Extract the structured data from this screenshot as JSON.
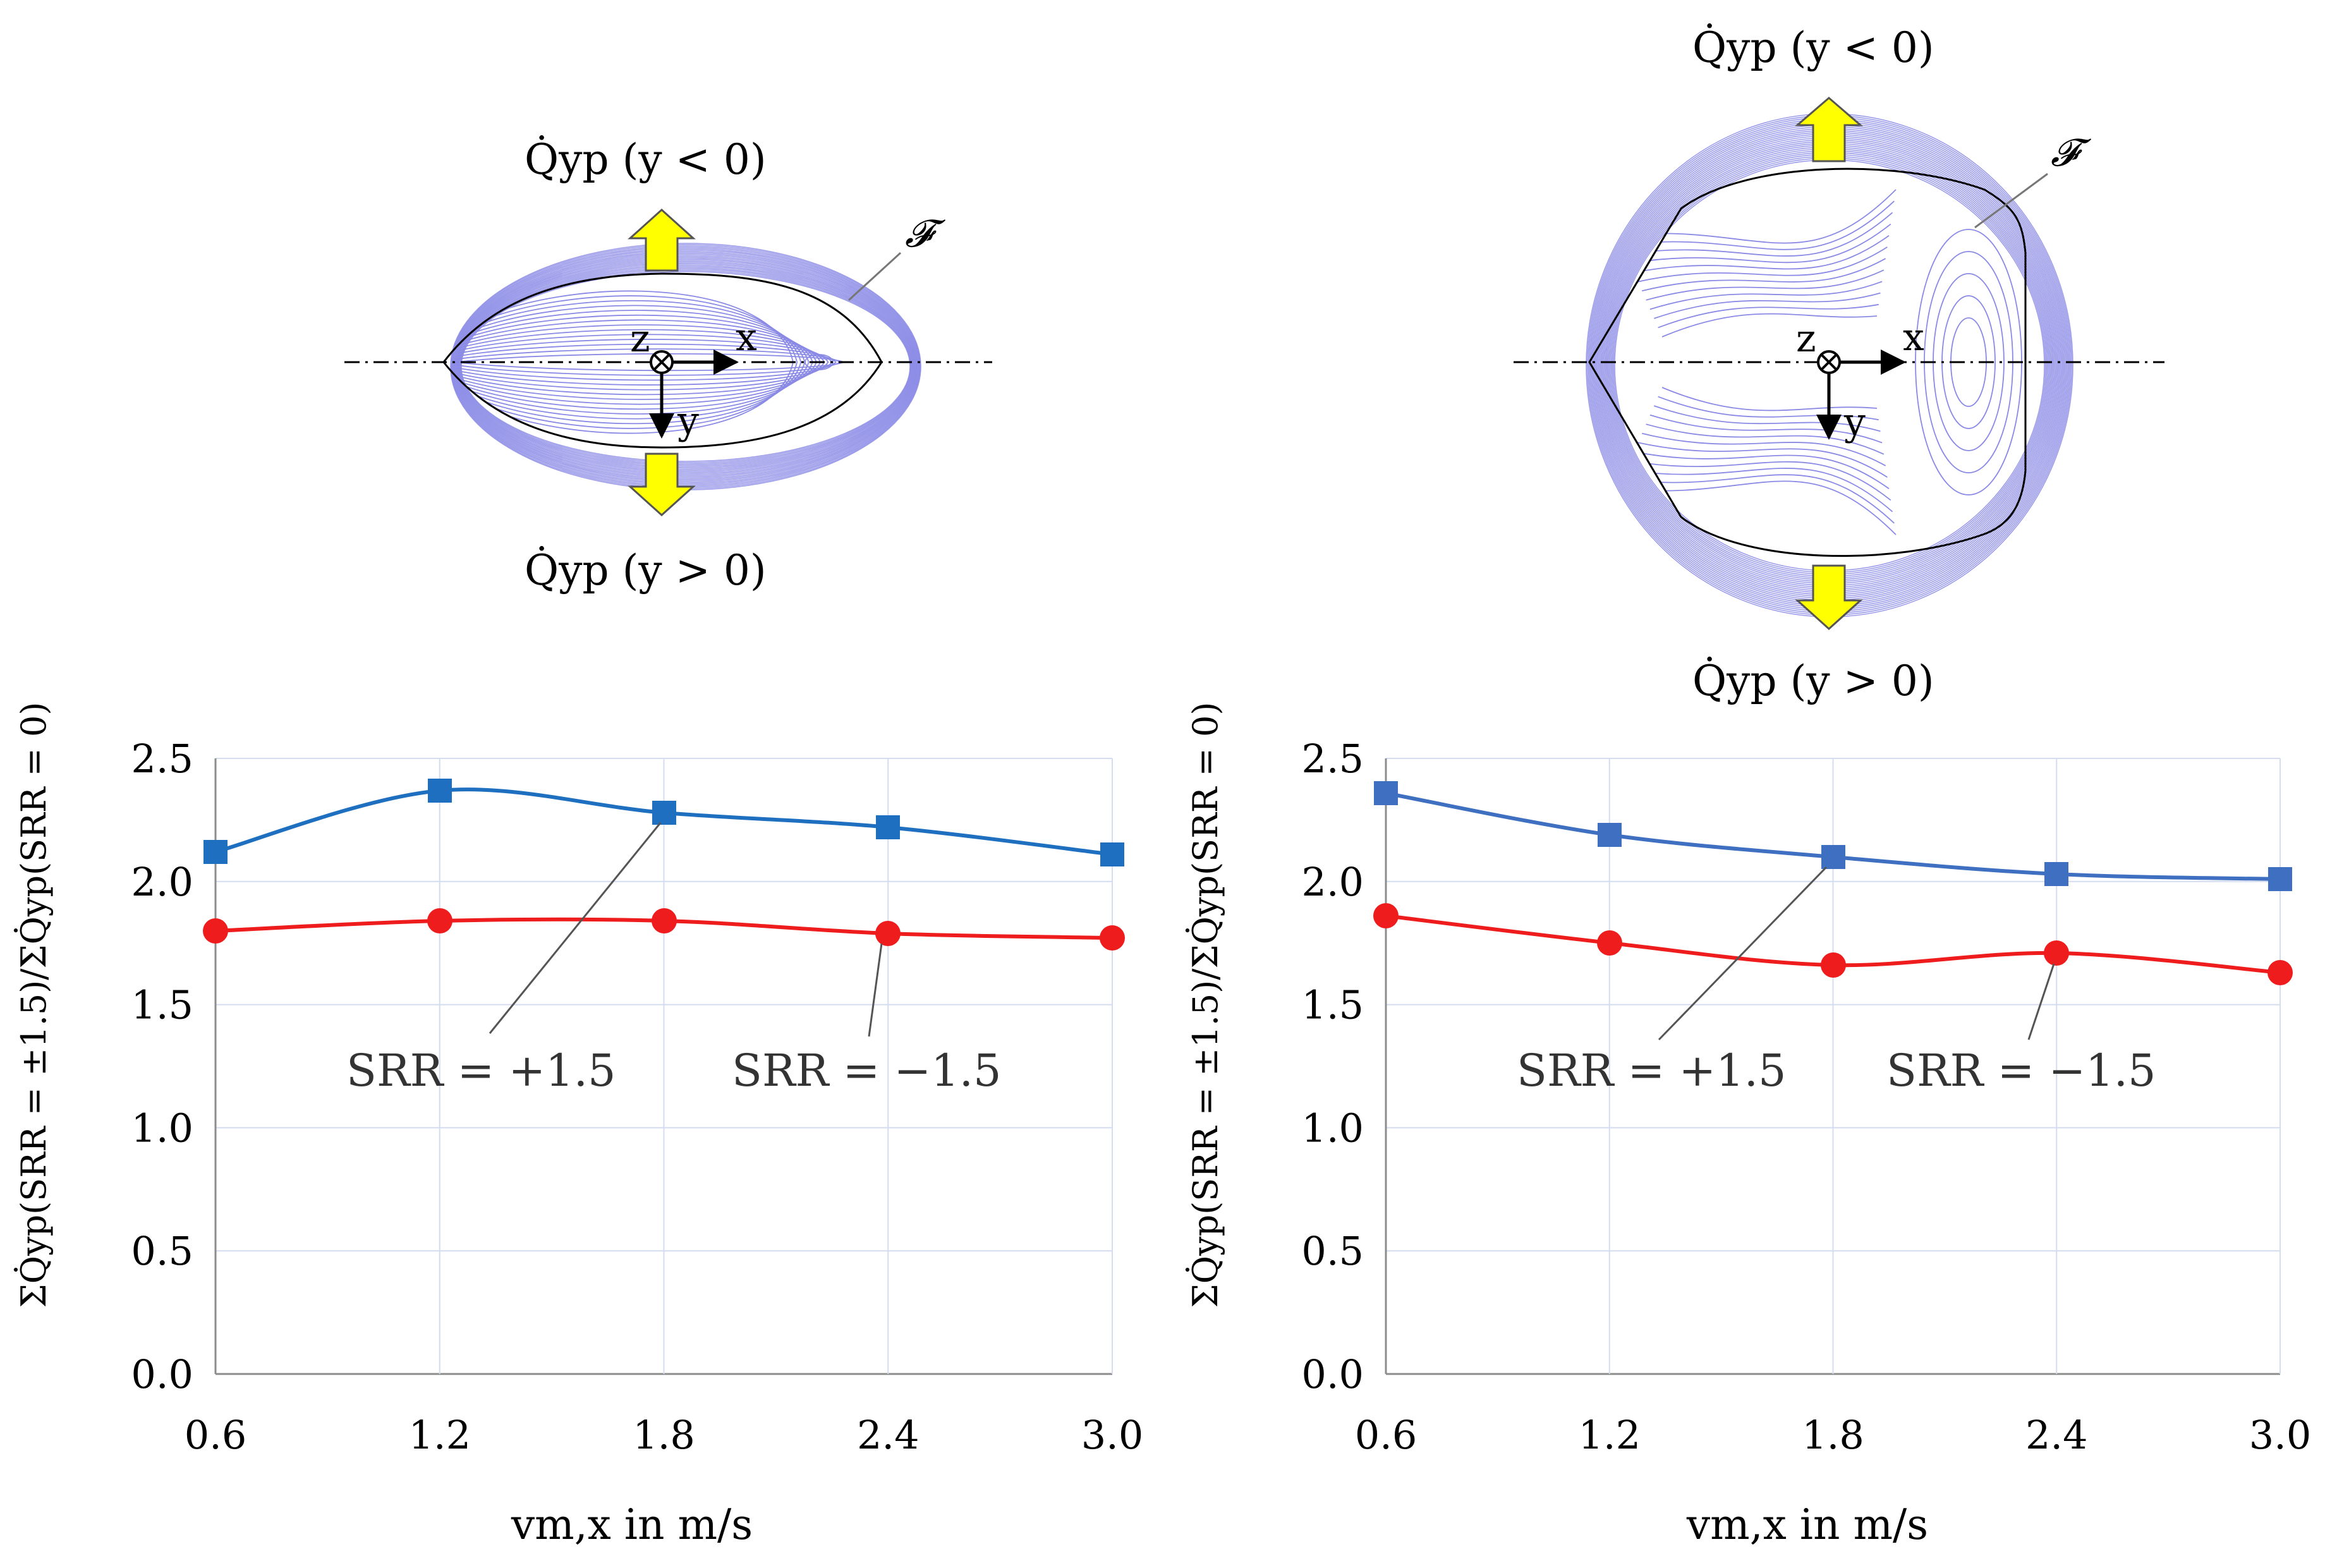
{
  "diagrams": [
    {
      "label_top": "Q̇yp (y < 0)",
      "label_bottom": "Q̇yp (y > 0)",
      "contour_label": "𝓕",
      "axis_x": "x",
      "axis_y": "y",
      "axis_z": "z"
    },
    {
      "label_top": "Q̇yp (y < 0)",
      "label_bottom": "Q̇yp (y > 0)",
      "contour_label": "𝓕",
      "axis_x": "x",
      "axis_y": "y",
      "axis_z": "z"
    }
  ],
  "colors": {
    "blue_series": "#1f6fc0",
    "red_series": "#ee1c1c",
    "contour": "#8a8ae6",
    "arrow_fill": "#ffff00",
    "grid": "#d4dcef"
  },
  "chart_data": [
    {
      "type": "line",
      "x": [
        0.6,
        1.2,
        1.8,
        2.4,
        3.0
      ],
      "x_tick_labels": [
        "0.6",
        "1.2",
        "1.8",
        "2.4",
        "3.0"
      ],
      "y_tick_labels": [
        "0.0",
        "0.5",
        "1.0",
        "1.5",
        "2.0",
        "2.5"
      ],
      "xlim": [
        0.6,
        3.0
      ],
      "ylim": [
        0.0,
        2.5
      ],
      "xlabel": "vm,x in m/s",
      "ylabel": "ΣQ̇yp(SRR = ±1.5)/ΣQ̇yp(SRR = 0)",
      "grid": true,
      "series": [
        {
          "name": "SRR = +1.5",
          "values": [
            2.12,
            2.37,
            2.28,
            2.22,
            2.11
          ],
          "marker": "square",
          "color": "#1f6fc0"
        },
        {
          "name": "SRR = −1.5",
          "values": [
            1.8,
            1.84,
            1.84,
            1.79,
            1.77
          ],
          "marker": "circle",
          "color": "#ee1c1c"
        }
      ]
    },
    {
      "type": "line",
      "x": [
        0.6,
        1.2,
        1.8,
        2.4,
        3.0
      ],
      "x_tick_labels": [
        "0.6",
        "1.2",
        "1.8",
        "2.4",
        "3.0"
      ],
      "y_tick_labels": [
        "0.0",
        "0.5",
        "1.0",
        "1.5",
        "2.0",
        "2.5"
      ],
      "xlim": [
        0.6,
        3.0
      ],
      "ylim": [
        0.0,
        2.5
      ],
      "xlabel": "vm,x in m/s",
      "ylabel": "ΣQ̇yp(SRR = ±1.5)/ΣQ̇yp(SRR = 0)",
      "grid": true,
      "series": [
        {
          "name": "SRR = +1.5",
          "values": [
            2.36,
            2.19,
            2.1,
            2.03,
            2.01
          ],
          "marker": "square",
          "color": "#3f6fc0"
        },
        {
          "name": "SRR = −1.5",
          "values": [
            1.86,
            1.75,
            1.66,
            1.71,
            1.63
          ],
          "marker": "circle",
          "color": "#ee1c1c"
        }
      ]
    }
  ]
}
